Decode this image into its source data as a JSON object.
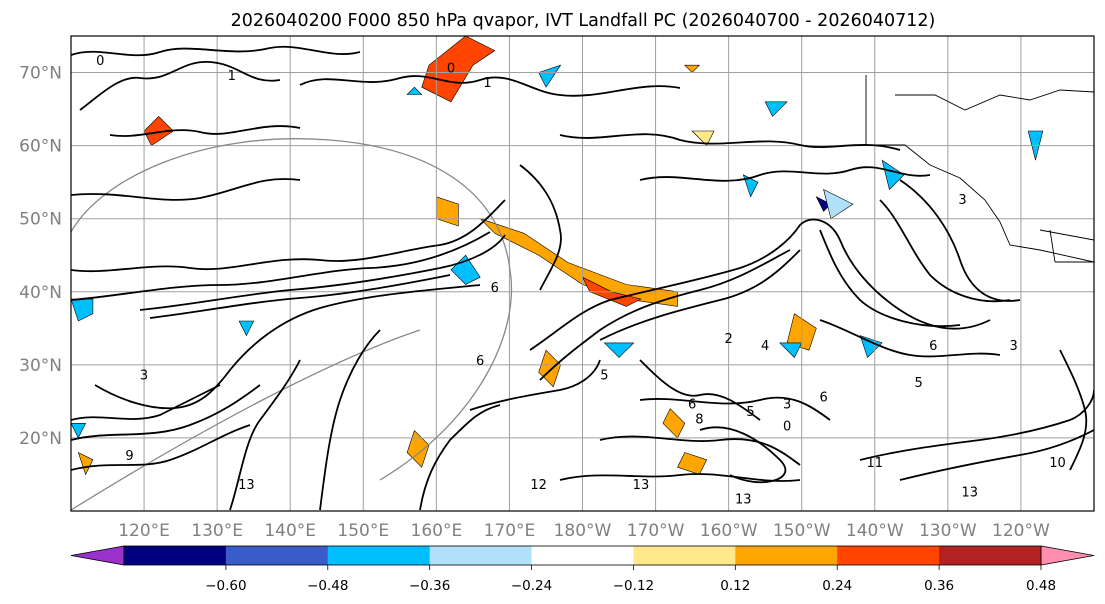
{
  "chart_data": {
    "type": "contour-map",
    "title": "2026040200 F000 850 hPa qvapor, IVT Landfall PC (2026040700 - 2026040712)",
    "lat_range": [
      10,
      75
    ],
    "lon_range_east": [
      110,
      250
    ],
    "lat_ticks": [
      {
        "value": 20,
        "label": "20°N"
      },
      {
        "value": 30,
        "label": "30°N"
      },
      {
        "value": 40,
        "label": "40°N"
      },
      {
        "value": 50,
        "label": "50°N"
      },
      {
        "value": 60,
        "label": "60°N"
      },
      {
        "value": 70,
        "label": "70°N"
      }
    ],
    "lon_ticks": [
      {
        "value": 120,
        "label": "120°E"
      },
      {
        "value": 130,
        "label": "130°E"
      },
      {
        "value": 140,
        "label": "140°E"
      },
      {
        "value": 150,
        "label": "150°E"
      },
      {
        "value": 160,
        "label": "160°E"
      },
      {
        "value": 170,
        "label": "170°E"
      },
      {
        "value": 180,
        "label": "180°W"
      },
      {
        "value": 190,
        "label": "170°W"
      },
      {
        "value": 200,
        "label": "160°W"
      },
      {
        "value": 210,
        "label": "150°W"
      },
      {
        "value": 220,
        "label": "140°W"
      },
      {
        "value": 230,
        "label": "130°W"
      },
      {
        "value": 240,
        "label": "120°W"
      }
    ],
    "colorbar": {
      "bins": [
        {
          "from": "-inf",
          "to": -0.6,
          "color": "#9932CC"
        },
        {
          "from": -0.6,
          "to": -0.48,
          "color": "#000080"
        },
        {
          "from": -0.48,
          "to": -0.36,
          "color": "#3A5CCB"
        },
        {
          "from": -0.36,
          "to": -0.24,
          "color": "#00BFFF"
        },
        {
          "from": -0.24,
          "to": -0.12,
          "color": "#B0E0FA"
        },
        {
          "from": -0.12,
          "to": 0.12,
          "color": "#FFFFFF"
        },
        {
          "from": 0.12,
          "to": 0.24,
          "color": "#FFE98A"
        },
        {
          "from": 0.24,
          "to": 0.36,
          "color": "#FFA500"
        },
        {
          "from": 0.36,
          "to": 0.48,
          "color": "#FF4500"
        },
        {
          "from": 0.48,
          "to": 0.6,
          "color": "#B22222"
        },
        {
          "from": 0.6,
          "to": "inf",
          "color": "#FF8FB0"
        }
      ],
      "tick_labels": [
        "−0.60",
        "−0.48",
        "−0.36",
        "−0.24",
        "−0.12",
        "0.12",
        "0.24",
        "0.36",
        "0.48",
        "0.60"
      ]
    },
    "contour_labels": [
      {
        "text": "0",
        "lon": 114,
        "lat": 71
      },
      {
        "text": "1",
        "lon": 132,
        "lat": 69
      },
      {
        "text": "0",
        "lon": 162,
        "lat": 70
      },
      {
        "text": "1",
        "lon": 167,
        "lat": 68
      },
      {
        "text": "3",
        "lon": 232,
        "lat": 52
      },
      {
        "text": "6",
        "lon": 168,
        "lat": 40
      },
      {
        "text": "2",
        "lon": 200,
        "lat": 33
      },
      {
        "text": "3",
        "lon": 120,
        "lat": 28
      },
      {
        "text": "6",
        "lon": 166,
        "lat": 30
      },
      {
        "text": "5",
        "lon": 183,
        "lat": 28
      },
      {
        "text": "6",
        "lon": 195,
        "lat": 24
      },
      {
        "text": "5",
        "lon": 203,
        "lat": 23
      },
      {
        "text": "3",
        "lon": 208,
        "lat": 24
      },
      {
        "text": "6",
        "lon": 213,
        "lat": 25
      },
      {
        "text": "8",
        "lon": 196,
        "lat": 22
      },
      {
        "text": "0",
        "lon": 208,
        "lat": 21
      },
      {
        "text": "4",
        "lon": 205,
        "lat": 32
      },
      {
        "text": "6",
        "lon": 228,
        "lat": 32
      },
      {
        "text": "5",
        "lon": 226,
        "lat": 27
      },
      {
        "text": "3",
        "lon": 239,
        "lat": 32
      },
      {
        "text": "11",
        "lon": 220,
        "lat": 16
      },
      {
        "text": "13",
        "lon": 188,
        "lat": 13
      },
      {
        "text": "13",
        "lon": 202,
        "lat": 11
      },
      {
        "text": "13",
        "lon": 233,
        "lat": 12
      },
      {
        "text": "10",
        "lon": 245,
        "lat": 16
      },
      {
        "text": "12",
        "lon": 174,
        "lat": 13
      },
      {
        "text": "9",
        "lon": 118,
        "lat": 17
      },
      {
        "text": "13",
        "lon": 134,
        "lat": 13
      }
    ],
    "anomaly_regions": [
      {
        "level": 0.42,
        "lon_lat": [
          [
            162,
            66
          ],
          [
            165,
            71
          ],
          [
            168,
            73
          ],
          [
            164,
            75
          ],
          [
            159,
            71
          ],
          [
            158,
            68
          ]
        ]
      },
      {
        "level": 0.42,
        "lon_lat": [
          [
            120,
            62
          ],
          [
            122,
            64
          ],
          [
            124,
            62
          ],
          [
            121,
            60
          ]
        ]
      },
      {
        "level": 0.3,
        "lon_lat": [
          [
            166,
            50
          ],
          [
            172,
            48
          ],
          [
            178,
            44
          ],
          [
            186,
            41
          ],
          [
            193,
            40
          ],
          [
            193,
            38
          ],
          [
            186,
            39
          ],
          [
            180,
            41
          ],
          [
            174,
            45
          ],
          [
            168,
            48
          ]
        ]
      },
      {
        "level": 0.42,
        "lon_lat": [
          [
            180,
            42
          ],
          [
            184,
            40
          ],
          [
            188,
            39
          ],
          [
            186,
            38
          ],
          [
            181,
            40
          ]
        ]
      },
      {
        "level": 0.3,
        "lon_lat": [
          [
            160,
            53
          ],
          [
            163,
            52
          ],
          [
            163,
            49
          ],
          [
            160,
            50
          ]
        ]
      },
      {
        "level": 0.3,
        "lon_lat": [
          [
            209,
            37
          ],
          [
            212,
            35
          ],
          [
            211,
            32
          ],
          [
            208,
            33
          ]
        ]
      },
      {
        "level": 0.3,
        "lon_lat": [
          [
            175,
            32
          ],
          [
            177,
            30
          ],
          [
            176,
            27
          ],
          [
            174,
            29
          ]
        ]
      },
      {
        "level": 0.3,
        "lon_lat": [
          [
            192,
            24
          ],
          [
            194,
            22
          ],
          [
            193,
            20
          ],
          [
            191,
            22
          ]
        ]
      },
      {
        "level": 0.3,
        "lon_lat": [
          [
            194,
            18
          ],
          [
            197,
            17
          ],
          [
            196,
            15
          ],
          [
            193,
            16
          ]
        ]
      },
      {
        "level": 0.3,
        "lon_lat": [
          [
            157,
            21
          ],
          [
            159,
            19
          ],
          [
            158,
            16
          ],
          [
            156,
            18
          ]
        ]
      },
      {
        "level": 0.3,
        "lon_lat": [
          [
            111,
            18
          ],
          [
            113,
            17
          ],
          [
            112,
            15
          ]
        ]
      },
      {
        "level": 0.3,
        "lon_lat": [
          [
            194,
            71
          ],
          [
            196,
            71
          ],
          [
            195,
            70
          ]
        ]
      },
      {
        "level": 0.2,
        "lon_lat": [
          [
            195,
            62
          ],
          [
            198,
            62
          ],
          [
            197,
            60
          ]
        ]
      },
      {
        "level": -0.28,
        "lon_lat": [
          [
            164,
            45
          ],
          [
            166,
            42
          ],
          [
            164,
            41
          ],
          [
            162,
            43
          ]
        ]
      },
      {
        "level": -0.28,
        "lon_lat": [
          [
            174,
            70
          ],
          [
            177,
            71
          ],
          [
            175,
            68
          ]
        ]
      },
      {
        "level": -0.28,
        "lon_lat": [
          [
            156,
            67
          ],
          [
            157,
            68
          ],
          [
            158,
            67
          ]
        ]
      },
      {
        "level": -0.28,
        "lon_lat": [
          [
            110,
            39
          ],
          [
            113,
            39
          ],
          [
            113,
            37
          ],
          [
            111,
            36
          ]
        ]
      },
      {
        "level": -0.28,
        "lon_lat": [
          [
            221,
            58
          ],
          [
            224,
            56
          ],
          [
            222,
            54
          ]
        ]
      },
      {
        "level": -0.28,
        "lon_lat": [
          [
            207,
            33
          ],
          [
            210,
            33
          ],
          [
            209,
            31
          ]
        ]
      },
      {
        "level": -0.28,
        "lon_lat": [
          [
            218,
            34
          ],
          [
            221,
            33
          ],
          [
            219,
            31
          ]
        ]
      },
      {
        "level": -0.28,
        "lon_lat": [
          [
            183,
            33
          ],
          [
            187,
            33
          ],
          [
            185,
            31
          ]
        ]
      },
      {
        "level": -0.28,
        "lon_lat": [
          [
            202,
            56
          ],
          [
            204,
            55
          ],
          [
            203,
            53
          ]
        ]
      },
      {
        "level": -0.52,
        "lon_lat": [
          [
            212,
            53
          ],
          [
            214,
            52
          ],
          [
            213,
            51
          ]
        ]
      },
      {
        "level": -0.2,
        "lon_lat": [
          [
            213,
            54
          ],
          [
            217,
            52
          ],
          [
            214,
            50
          ]
        ]
      },
      {
        "level": -0.28,
        "lon_lat": [
          [
            241,
            62
          ],
          [
            243,
            62
          ],
          [
            242,
            58
          ]
        ]
      },
      {
        "level": -0.28,
        "lon_lat": [
          [
            133,
            36
          ],
          [
            135,
            36
          ],
          [
            134,
            34
          ]
        ]
      },
      {
        "level": -0.28,
        "lon_lat": [
          [
            110,
            22
          ],
          [
            112,
            22
          ],
          [
            111,
            20
          ]
        ]
      },
      {
        "level": -0.28,
        "lon_lat": [
          [
            205,
            66
          ],
          [
            208,
            66
          ],
          [
            206,
            64
          ]
        ]
      }
    ]
  }
}
